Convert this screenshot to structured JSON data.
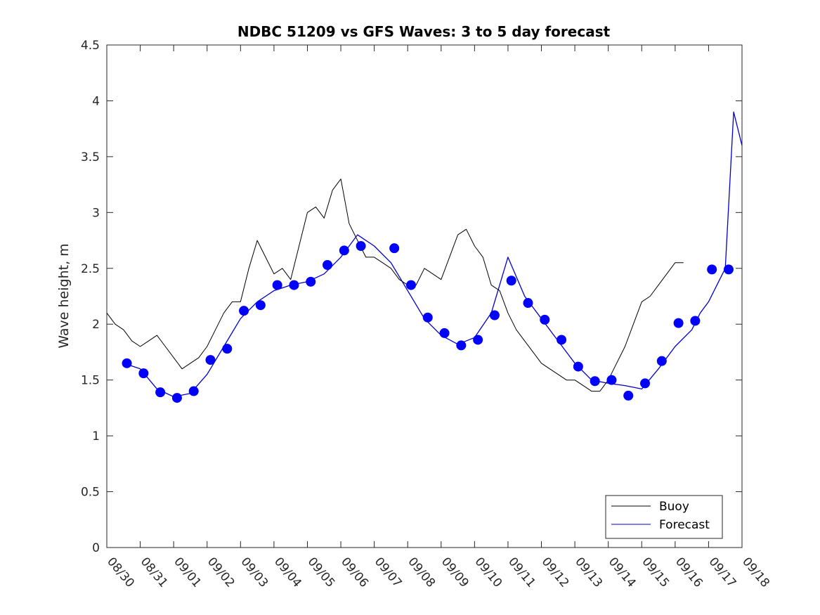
{
  "chart_data": {
    "type": "line",
    "title": "NDBC 51209 vs GFS Waves: 3 to 5 day forecast",
    "xlabel": "",
    "ylabel": "Wave height, m",
    "xlim": [
      0,
      19
    ],
    "ylim": [
      0,
      4.5
    ],
    "x_tick_labels": [
      "08/30",
      "08/31",
      "09/01",
      "09/02",
      "09/03",
      "09/04",
      "09/05",
      "09/06",
      "09/07",
      "09/08",
      "09/09",
      "09/10",
      "09/11",
      "09/12",
      "09/13",
      "09/14",
      "09/15",
      "09/16",
      "09/17",
      "09/18"
    ],
    "y_ticks": [
      0,
      0.5,
      1,
      1.5,
      2,
      2.5,
      3,
      3.5,
      4,
      4.5
    ],
    "y_tick_labels": [
      "0",
      "0.5",
      "1",
      "1.5",
      "2",
      "2.5",
      "3",
      "3.5",
      "4",
      "4.5"
    ],
    "legend": {
      "position": "bottom-right",
      "entries": [
        "Buoy",
        "Forecast"
      ]
    },
    "colors": {
      "buoy": "#000000",
      "forecast": "#0000cc",
      "markers": "#0000ff"
    },
    "series": [
      {
        "name": "Buoy",
        "x": [
          0,
          0.25,
          0.5,
          0.75,
          1,
          1.25,
          1.5,
          1.75,
          2,
          2.25,
          2.5,
          2.75,
          3,
          3.25,
          3.5,
          3.75,
          4,
          4.25,
          4.5,
          4.75,
          5,
          5.25,
          5.5,
          5.75,
          6,
          6.25,
          6.5,
          6.75,
          7,
          7.25,
          7.5,
          7.75,
          8,
          8.25,
          8.5,
          8.75,
          9,
          9.25,
          9.5,
          9.75,
          10,
          10.25,
          10.5,
          10.75,
          11,
          11.25,
          11.5,
          11.75,
          12,
          12.25,
          12.5,
          12.75,
          13,
          13.25,
          13.5,
          13.75,
          14,
          14.25,
          14.5,
          14.75,
          15,
          15.25,
          15.5,
          15.75,
          16,
          16.25,
          16.5,
          16.75,
          17,
          17.25
        ],
        "values": [
          2.1,
          2.0,
          1.95,
          1.85,
          1.8,
          1.85,
          1.9,
          1.8,
          1.7,
          1.6,
          1.65,
          1.7,
          1.8,
          1.95,
          2.1,
          2.2,
          2.2,
          2.5,
          2.75,
          2.6,
          2.45,
          2.5,
          2.4,
          2.7,
          3.0,
          3.05,
          2.95,
          3.2,
          3.3,
          2.9,
          2.75,
          2.6,
          2.6,
          2.55,
          2.5,
          2.4,
          2.35,
          2.35,
          2.5,
          2.45,
          2.4,
          2.6,
          2.8,
          2.85,
          2.7,
          2.6,
          2.35,
          2.3,
          2.1,
          1.95,
          1.85,
          1.75,
          1.65,
          1.6,
          1.55,
          1.5,
          1.5,
          1.45,
          1.4,
          1.4,
          1.5,
          1.65,
          1.8,
          2.0,
          2.2,
          2.25,
          2.35,
          2.45,
          2.55,
          2.55
        ]
      },
      {
        "name": "Forecast",
        "x": [
          0.5,
          1,
          1.5,
          2,
          2.5,
          3,
          3.5,
          4,
          4.5,
          5,
          5.5,
          6,
          6.5,
          7,
          7.5,
          8,
          8.5,
          9,
          9.5,
          10,
          10.5,
          11,
          11.5,
          12,
          12.5,
          13,
          13.5,
          14,
          14.5,
          15,
          15.5,
          16,
          16.5,
          17,
          17.5,
          17.75,
          18,
          18.25,
          18.5,
          18.75,
          19
        ],
        "values": [
          1.65,
          1.6,
          1.42,
          1.35,
          1.38,
          1.55,
          1.8,
          2.05,
          2.2,
          2.3,
          2.35,
          2.38,
          2.45,
          2.6,
          2.8,
          2.7,
          2.55,
          2.3,
          2.05,
          1.9,
          1.82,
          1.88,
          2.1,
          2.6,
          2.25,
          2.05,
          1.85,
          1.65,
          1.5,
          1.47,
          1.45,
          1.42,
          1.6,
          1.8,
          1.95,
          2.1,
          2.2,
          2.35,
          2.5,
          3.9,
          3.6
        ]
      },
      {
        "name": "Forecast markers",
        "x": [
          0.6,
          1.1,
          1.6,
          2.1,
          2.6,
          3.1,
          3.6,
          4.1,
          4.6,
          5.1,
          5.6,
          6.1,
          6.6,
          7.1,
          7.6,
          8.6,
          9.1,
          9.6,
          10.1,
          10.6,
          11.1,
          11.6,
          12.1,
          12.6,
          13.1,
          13.6,
          14.1,
          14.6,
          15.1,
          15.6,
          16.1,
          16.6,
          17.1,
          17.6,
          18.1,
          18.6
        ],
        "values": [
          1.65,
          1.56,
          1.39,
          1.34,
          1.4,
          1.68,
          1.78,
          2.12,
          2.17,
          2.35,
          2.35,
          2.38,
          2.53,
          2.66,
          2.7,
          2.68,
          2.35,
          2.06,
          1.92,
          1.81,
          1.86,
          2.08,
          2.39,
          2.19,
          2.04,
          1.86,
          1.62,
          1.49,
          1.5,
          1.36,
          1.47,
          1.67,
          2.01,
          2.03,
          2.49,
          2.49
        ]
      }
    ]
  }
}
